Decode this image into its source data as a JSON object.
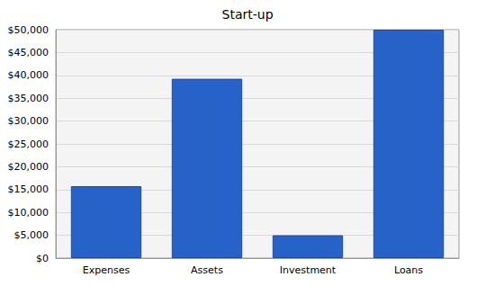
{
  "chart_data": {
    "type": "bar",
    "title": "Start-up",
    "categories": [
      "Expenses",
      "Assets",
      "Investment",
      "Loans"
    ],
    "values": [
      15750,
      39250,
      5000,
      50000
    ],
    "color": "#2662c8",
    "ylim": [
      0,
      50000
    ],
    "yticks": [
      {
        "value": 0,
        "label": "$0"
      },
      {
        "value": 5000,
        "label": "$5,000"
      },
      {
        "value": 10000,
        "label": "$10,000"
      },
      {
        "value": 15000,
        "label": "$15,000"
      },
      {
        "value": 20000,
        "label": "$20,000"
      },
      {
        "value": 25000,
        "label": "$25,000"
      },
      {
        "value": 30000,
        "label": "$30,000"
      },
      {
        "value": 35000,
        "label": "$35,000"
      },
      {
        "value": 40000,
        "label": "$40,000"
      },
      {
        "value": 45000,
        "label": "$45,000"
      },
      {
        "value": 50000,
        "label": "$50,000"
      }
    ],
    "grid": true
  }
}
